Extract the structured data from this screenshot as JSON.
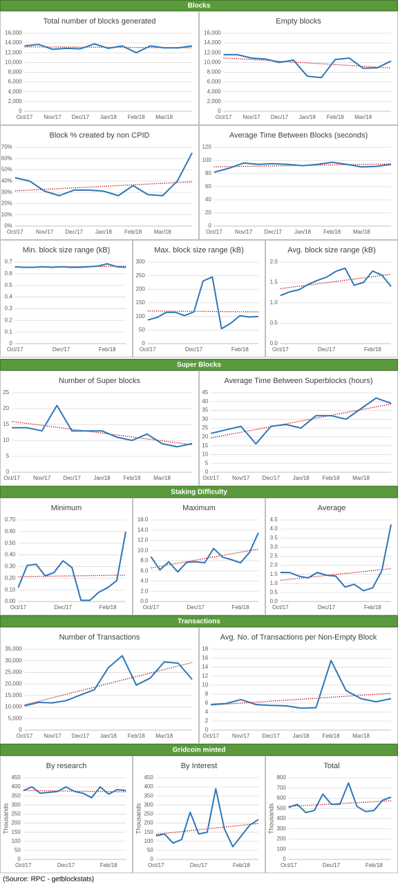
{
  "sections": [
    {
      "title": "Blocks"
    },
    {
      "title": "Super Blocks"
    },
    {
      "title": "Staking Difficulty"
    },
    {
      "title": "Transactions"
    },
    {
      "title": "Gridcoin minted"
    }
  ],
  "source": "(Source: RPC - getblockstats)",
  "chart_data": [
    {
      "type": "line",
      "title": "Total number of blocks generated",
      "color": "#2e75b6",
      "grid": true,
      "trendline": "linear",
      "categories": [
        "Oct/17",
        null,
        "Nov/17",
        null,
        "Dec/17",
        null,
        "Jan/18",
        null,
        "Feb/18",
        null,
        "Mar/18",
        null,
        null
      ],
      "values": [
        13400,
        13700,
        12700,
        12900,
        12800,
        13800,
        12900,
        13400,
        12000,
        13400,
        13000,
        13000,
        13400
      ],
      "ylim": [
        0,
        16000
      ],
      "yticks": [
        0,
        {
          "value": 2000,
          "label": "2,000"
        },
        {
          "value": 4000,
          "label": "4,000"
        },
        {
          "value": 6000,
          "label": "6,000"
        },
        {
          "value": 8000,
          "label": "8,000"
        },
        {
          "value": 10000,
          "label": "10,000"
        },
        {
          "value": 12000,
          "label": "12,000"
        },
        {
          "value": 14000,
          "label": "14,000"
        },
        {
          "value": 16000,
          "label": "16,000"
        }
      ]
    },
    {
      "type": "line",
      "title": "Empty blocks",
      "color": "#2e75b6",
      "grid": true,
      "trendline": "linear",
      "categories": [
        "Oct/17",
        null,
        "Nov/17",
        null,
        "Dec/17",
        null,
        "Jan/18",
        null,
        "Feb/18",
        null,
        "Mar/18",
        null,
        null
      ],
      "values": [
        11600,
        11600,
        10900,
        10700,
        10000,
        10500,
        7200,
        6900,
        10600,
        10900,
        8800,
        8900,
        10300
      ],
      "ylim": [
        0,
        16000
      ],
      "yticks": [
        0,
        {
          "value": 2000,
          "label": "2,000"
        },
        {
          "value": 4000,
          "label": "4,000"
        },
        {
          "value": 6000,
          "label": "6,000"
        },
        {
          "value": 8000,
          "label": "8,000"
        },
        {
          "value": 10000,
          "label": "10,000"
        },
        {
          "value": 12000,
          "label": "12,000"
        },
        {
          "value": 14000,
          "label": "14,000"
        },
        {
          "value": 16000,
          "label": "16,000"
        }
      ]
    },
    {
      "type": "line",
      "title": "Block % created by non CPID",
      "color": "#2e75b6",
      "grid": true,
      "trendline": "linear",
      "categories": [
        "Oct/17",
        null,
        "Nov/17",
        null,
        "Dec/17",
        null,
        "Jan/18",
        null,
        "Feb/18",
        null,
        "Mar/18",
        null,
        null
      ],
      "values": [
        43,
        40,
        31,
        27,
        32,
        32,
        31,
        27,
        36,
        28,
        27,
        40,
        65
      ],
      "ylim": [
        0,
        70
      ],
      "yticks": [
        {
          "value": 0,
          "label": "0%"
        },
        {
          "value": 10,
          "label": "10%"
        },
        {
          "value": 20,
          "label": "20%"
        },
        {
          "value": 30,
          "label": "30%"
        },
        {
          "value": 40,
          "label": "40%"
        },
        {
          "value": 50,
          "label": "50%"
        },
        {
          "value": 60,
          "label": "60%"
        },
        {
          "value": 70,
          "label": "70%"
        }
      ]
    },
    {
      "type": "line",
      "title": "Average Time Between Blocks (seconds)",
      "color": "#2e75b6",
      "grid": true,
      "trendline": "linear",
      "categories": [
        "Oct/17",
        null,
        "Nov/17",
        null,
        "Dec/17",
        null,
        "Jan/18",
        null,
        "Feb/18",
        null,
        "Mar/18",
        null,
        null
      ],
      "values": [
        82,
        88,
        96,
        94,
        95,
        94,
        92,
        94,
        97,
        94,
        90,
        91,
        94
      ],
      "ylim": [
        0,
        120
      ],
      "yticks": [
        0,
        20,
        40,
        60,
        80,
        100,
        120
      ]
    },
    {
      "type": "line",
      "title": "Min. block size range (kB)",
      "color": "#2e75b6",
      "grid": true,
      "trendline": "linear",
      "categories": [
        "Oct/17",
        null,
        null,
        null,
        null,
        "Dec/17",
        null,
        null,
        null,
        null,
        "Feb/18",
        null,
        null
      ],
      "values": [
        0.66,
        0.655,
        0.655,
        0.66,
        0.655,
        0.66,
        0.655,
        0.655,
        0.66,
        0.665,
        0.685,
        0.66,
        0.655
      ],
      "ylim": [
        0,
        0.7
      ],
      "yticks": [
        0,
        0.1,
        0.2,
        0.3,
        0.4,
        0.5,
        0.6,
        0.7
      ]
    },
    {
      "type": "line",
      "title": "Max. block size range (kB)",
      "color": "#2e75b6",
      "grid": true,
      "trendline": "linear",
      "categories": [
        "Oct/17",
        null,
        null,
        null,
        null,
        "Dec/17",
        null,
        null,
        null,
        null,
        "Feb/18",
        null,
        null
      ],
      "values": [
        87,
        96,
        115,
        115,
        103,
        117,
        230,
        245,
        55,
        75,
        103,
        98,
        100
      ],
      "ylim": [
        0,
        300
      ],
      "yticks": [
        0,
        50,
        100,
        150,
        200,
        250,
        300
      ]
    },
    {
      "type": "line",
      "title": "Avg. block size range (kB)",
      "color": "#2e75b6",
      "grid": true,
      "trendline": "linear",
      "categories": [
        "Oct/17",
        null,
        null,
        null,
        null,
        "Dec/17",
        null,
        null,
        null,
        null,
        "Feb/18",
        null,
        null
      ],
      "values": [
        1.18,
        1.27,
        1.32,
        1.45,
        1.55,
        1.63,
        1.77,
        1.85,
        1.43,
        1.5,
        1.78,
        1.68,
        1.4
      ],
      "ylim": [
        0,
        2
      ],
      "yticks": [
        {
          "value": 0,
          "label": "0.0"
        },
        {
          "value": 0.5,
          "label": "0.5"
        },
        {
          "value": 1,
          "label": "1.0"
        },
        {
          "value": 1.5,
          "label": "1.5"
        },
        {
          "value": 2,
          "label": "2.0"
        }
      ]
    },
    {
      "type": "line",
      "title": "Number of Super blocks",
      "color": "#2e75b6",
      "grid": true,
      "trendline": "linear",
      "categories": [
        "Oct/17",
        null,
        "Nov/17",
        null,
        "Dec/17",
        null,
        "Jan/18",
        null,
        "Feb/18",
        null,
        "Mar/18",
        null,
        null
      ],
      "values": [
        14,
        14,
        13,
        21,
        13,
        13,
        13,
        11,
        10,
        12,
        9,
        8,
        9
      ],
      "ylim": [
        0,
        25
      ],
      "yticks": [
        0,
        5,
        10,
        15,
        20,
        25
      ]
    },
    {
      "type": "line",
      "title": "Average Time Between Superblocks (hours)",
      "color": "#2e75b6",
      "grid": true,
      "trendline": "linear",
      "categories": [
        "Oct/17",
        null,
        "Nov/17",
        null,
        "Dec/17",
        null,
        "Jan/18",
        null,
        "Feb/18",
        null,
        "Mar/18",
        null,
        null
      ],
      "values": [
        22,
        24,
        26,
        16,
        26,
        27,
        25,
        32,
        32,
        30,
        36,
        42,
        39
      ],
      "ylim": [
        0,
        45
      ],
      "yticks": [
        0,
        5,
        10,
        15,
        20,
        25,
        30,
        35,
        40,
        45
      ]
    },
    {
      "type": "line",
      "title": "Minimum",
      "color": "#2e75b6",
      "grid": true,
      "trendline": "linear",
      "categories": [
        "Oct/17",
        null,
        null,
        null,
        null,
        "Dec/17",
        null,
        null,
        null,
        null,
        "Feb/18",
        null,
        null
      ],
      "values": [
        0.12,
        0.31,
        0.32,
        0.22,
        0.25,
        0.35,
        0.29,
        0.01,
        0.01,
        0.08,
        0.12,
        0.18,
        0.6
      ],
      "ylim": [
        0,
        0.7
      ],
      "yticks": [
        {
          "value": 0,
          "label": "0.00"
        },
        {
          "value": 0.1,
          "label": "0.10"
        },
        {
          "value": 0.2,
          "label": "0.20"
        },
        {
          "value": 0.3,
          "label": "0.30"
        },
        {
          "value": 0.4,
          "label": "0.40"
        },
        {
          "value": 0.5,
          "label": "0.50"
        },
        {
          "value": 0.6,
          "label": "0.60"
        },
        {
          "value": 0.7,
          "label": "0.70"
        }
      ]
    },
    {
      "type": "line",
      "title": "Maximum",
      "color": "#2e75b6",
      "grid": true,
      "trendline": "linear",
      "categories": [
        "Oct/17",
        null,
        null,
        null,
        null,
        "Dec/17",
        null,
        null,
        null,
        null,
        "Feb/18",
        null,
        null
      ],
      "values": [
        8.8,
        6.2,
        7.8,
        5.8,
        7.7,
        7.8,
        7.6,
        10.4,
        8.7,
        8.2,
        7.6,
        9.6,
        13.5
      ],
      "ylim": [
        0,
        16
      ],
      "yticks": [
        {
          "value": 0,
          "label": "0.0"
        },
        {
          "value": 2,
          "label": "2.0"
        },
        {
          "value": 4,
          "label": "4.0"
        },
        {
          "value": 6,
          "label": "6.0"
        },
        {
          "value": 8,
          "label": "8.0"
        },
        {
          "value": 10,
          "label": "10.0"
        },
        {
          "value": 12,
          "label": "12.0"
        },
        {
          "value": 14,
          "label": "14.0"
        },
        {
          "value": 16,
          "label": "16.0"
        }
      ]
    },
    {
      "type": "line",
      "title": "Average",
      "color": "#2e75b6",
      "grid": true,
      "trendline": "linear",
      "categories": [
        "Oct/17",
        null,
        null,
        null,
        null,
        "Dec/17",
        null,
        null,
        null,
        null,
        "Feb/18",
        null,
        null
      ],
      "values": [
        1.6,
        1.6,
        1.4,
        1.3,
        1.6,
        1.45,
        1.4,
        0.8,
        0.95,
        0.6,
        0.75,
        1.7,
        4.25
      ],
      "ylim": [
        0,
        4.5
      ],
      "yticks": [
        {
          "value": 0,
          "label": "0.0"
        },
        {
          "value": 0.5,
          "label": "0.5"
        },
        {
          "value": 1,
          "label": "1.0"
        },
        {
          "value": 1.5,
          "label": "1.5"
        },
        {
          "value": 2,
          "label": "2.0"
        },
        {
          "value": 2.5,
          "label": "2.5"
        },
        {
          "value": 3,
          "label": "3.0"
        },
        {
          "value": 3.5,
          "label": "3.5"
        },
        {
          "value": 4,
          "label": "4.0"
        },
        {
          "value": 4.5,
          "label": "4.5"
        }
      ]
    },
    {
      "type": "line",
      "title": "Number of Transactions",
      "color": "#2e75b6",
      "grid": true,
      "trendline": "linear",
      "categories": [
        "Oct/17",
        null,
        "Nov/17",
        null,
        "Dec/17",
        null,
        "Jan/18",
        null,
        "Feb/18",
        null,
        "Mar/18",
        null,
        null
      ],
      "values": [
        10500,
        12000,
        11800,
        12800,
        15200,
        17500,
        27000,
        32200,
        19500,
        22500,
        29500,
        29000,
        22000
      ],
      "ylim": [
        0,
        35000
      ],
      "yticks": [
        0,
        {
          "value": 5000,
          "label": "5,000"
        },
        {
          "value": 10000,
          "label": "10,000"
        },
        {
          "value": 15000,
          "label": "15,000"
        },
        {
          "value": 20000,
          "label": "20,000"
        },
        {
          "value": 25000,
          "label": "25,000"
        },
        {
          "value": 30000,
          "label": "30,000"
        },
        {
          "value": 35000,
          "label": "35,000"
        }
      ]
    },
    {
      "type": "line",
      "title": "Avg. No. of Transactions per Non-Empty Block",
      "color": "#2e75b6",
      "grid": true,
      "trendline": "linear",
      "categories": [
        "Oct/17",
        null,
        "Nov/17",
        null,
        "Dec/17",
        null,
        "Jan/18",
        null,
        "Feb/18",
        null,
        "Mar/18",
        null,
        null
      ],
      "values": [
        5.7,
        5.9,
        6.8,
        5.7,
        5.5,
        5.4,
        4.9,
        5.0,
        15.5,
        8.8,
        7.0,
        6.3,
        7.0
      ],
      "ylim": [
        0,
        18
      ],
      "yticks": [
        0,
        2,
        4,
        6,
        8,
        10,
        12,
        14,
        16,
        18
      ]
    },
    {
      "type": "line",
      "title": "By research",
      "ylabel": "Thousands",
      "color": "#2e75b6",
      "grid": true,
      "trendline": "linear",
      "categories": [
        "Oct/17",
        null,
        null,
        null,
        null,
        "Dec/17",
        null,
        null,
        null,
        null,
        "Feb/18",
        null,
        null
      ],
      "values": [
        380,
        400,
        365,
        370,
        375,
        400,
        375,
        365,
        340,
        400,
        360,
        385,
        380
      ],
      "ylim": [
        0,
        450
      ],
      "yticks": [
        0,
        50,
        100,
        150,
        200,
        250,
        300,
        350,
        400,
        450
      ]
    },
    {
      "type": "line",
      "title": "By Interest",
      "ylabel": "Thousands",
      "color": "#2e75b6",
      "grid": true,
      "trendline": "linear",
      "categories": [
        "Oct/17",
        null,
        null,
        null,
        null,
        "Dec/17",
        null,
        null,
        null,
        null,
        "Feb/18",
        null,
        null
      ],
      "values": [
        130,
        140,
        90,
        110,
        260,
        140,
        150,
        390,
        170,
        70,
        130,
        190,
        220
      ],
      "ylim": [
        0,
        450
      ],
      "yticks": [
        0,
        50,
        100,
        150,
        200,
        250,
        300,
        350,
        400,
        450
      ]
    },
    {
      "type": "line",
      "title": "Total",
      "ylabel": "Thousands",
      "color": "#2e75b6",
      "grid": true,
      "trendline": "linear",
      "categories": [
        "Oct/17",
        null,
        null,
        null,
        null,
        "Dec/17",
        null,
        null,
        null,
        null,
        "Feb/18",
        null,
        null
      ],
      "values": [
        510,
        540,
        460,
        480,
        640,
        540,
        540,
        750,
        520,
        470,
        480,
        580,
        610
      ],
      "ylim": [
        0,
        800
      ],
      "yticks": [
        0,
        100,
        200,
        300,
        400,
        500,
        600,
        700,
        800
      ]
    }
  ]
}
